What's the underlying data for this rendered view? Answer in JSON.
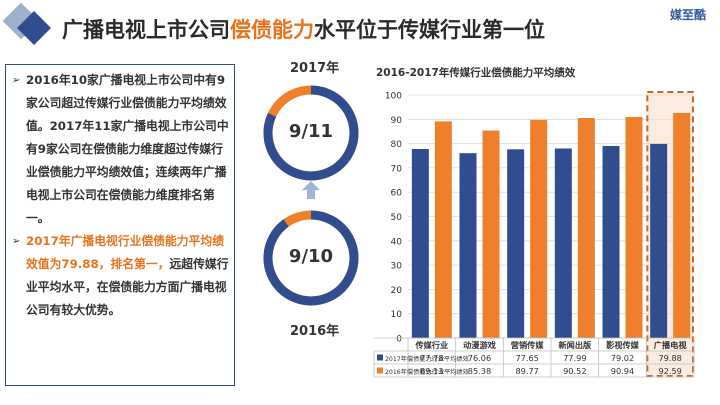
{
  "title": {
    "prefix": "广播电视上市公司",
    "highlight": "偿债能力",
    "suffix": "水平位于传媒行业第一位"
  },
  "logo": "媒至酷",
  "textbox": {
    "para1": "2016年10家广播电视上市公司中有9家公司超过传媒行业偿债能力平均绩效值。2017年11家广播电视上市公司中有9家公司在偿债能力维度超过传媒行业偿债能力平均绩效值；连续两年广播电视上市公司在偿债能力维度排名第一。",
    "para2_orange": "2017年广播电视行业偿债能力平均绩效值为79.88，排名第一，",
    "para2_rest": "远超传媒行业平均水平，在偿债能力方面广播电视公司有较大优势。"
  },
  "donuts": [
    {
      "year": "2017年",
      "label": "9/11",
      "ratio": 0.818
    },
    {
      "year": "2016年",
      "label": "9/10",
      "ratio": 0.9
    }
  ],
  "colors": {
    "blue": "#2f4d8f",
    "orange": "#ef7f2a",
    "title_orange": "#e8731d",
    "border": "#2c4a7a",
    "highlight_box": "#c06a2a"
  },
  "chart_data": {
    "type": "bar",
    "title": "2016-2017年传媒行业偿债能力平均绩效",
    "categories": [
      "传媒行业",
      "动漫游戏",
      "营销传媒",
      "新闻出版",
      "影视传媒",
      "广播电视"
    ],
    "series": [
      {
        "name": "2017年偿债能力行业平均绩效",
        "values": [
          77.78,
          76.06,
          77.65,
          77.99,
          79.02,
          79.88
        ],
        "labels": [
          "77.78",
          "76.06",
          "77.65",
          "77.99",
          "79.02",
          "79.88"
        ]
      },
      {
        "name": "2016年偿债能力行业平均绩效",
        "values": [
          89.13,
          85.38,
          89.77,
          90.52,
          90.94,
          92.59
        ],
        "labels": [
          "89.13",
          "85.38",
          "89.77",
          "90.52",
          "90.94",
          "92.59"
        ]
      }
    ],
    "ylim": [
      0,
      100
    ],
    "yticks": [
      "0",
      "10",
      "20",
      "30",
      "40",
      "50",
      "60",
      "70",
      "80",
      "90",
      "100"
    ],
    "grid": true,
    "legend": "data-table-below",
    "highlighted_category": "广播电视"
  }
}
